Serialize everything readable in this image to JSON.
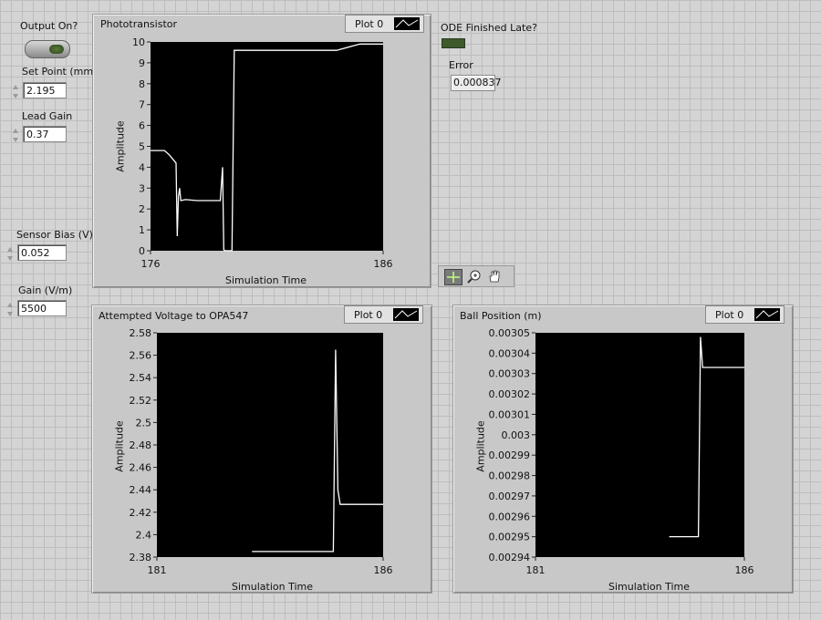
{
  "controls": {
    "output_on_label": "Output On?",
    "set_point_label": "Set Point (mm)",
    "set_point_value": "2.195",
    "lead_gain_label": "Lead Gain",
    "lead_gain_value": "0.37",
    "sensor_bias_label": "Sensor Bias (V)",
    "sensor_bias_value": "0.052",
    "gain_label": "Gain (V/m)",
    "gain_value": "5500",
    "ode_label": "ODE Finished Late?",
    "error_label": "Error",
    "error_value": "0.000837"
  },
  "graphs": {
    "phototransistor": {
      "title": "Phototransistor",
      "legend": "Plot 0",
      "ylabel": "Amplitude",
      "xlabel": "Simulation Time",
      "yticks": [
        "10",
        "9",
        "8",
        "7",
        "6",
        "5",
        "4",
        "3",
        "2",
        "1",
        "0"
      ],
      "xticks": [
        "176",
        "186"
      ]
    },
    "voltage": {
      "title": "Attempted Voltage to OPA547",
      "legend": "Plot 0",
      "ylabel": "Amplitude",
      "xlabel": "Simulation Time",
      "yticks": [
        "2.58",
        "2.56",
        "2.54",
        "2.52",
        "2.5",
        "2.48",
        "2.46",
        "2.44",
        "2.42",
        "2.4",
        "2.38"
      ],
      "xticks": [
        "181",
        "186"
      ]
    },
    "ball": {
      "title": "Ball Position (m)",
      "legend": "Plot 0",
      "ylabel": "Amplitude",
      "xlabel": "Simulation Time",
      "yticks": [
        "0.00305",
        "0.00304",
        "0.00303",
        "0.00302",
        "0.00301",
        "0.003",
        "0.00299",
        "0.00298",
        "0.00297",
        "0.00296",
        "0.00295",
        "0.00294"
      ],
      "xticks": [
        "181",
        "186"
      ]
    }
  },
  "chart_data": [
    {
      "type": "line",
      "title": "Phototransistor",
      "xlabel": "Simulation Time",
      "ylabel": "Amplitude",
      "xlim": [
        176,
        186
      ],
      "ylim": [
        0,
        10
      ],
      "series": [
        {
          "name": "Plot 0",
          "x": [
            176,
            176.6,
            176.8,
            177.1,
            177.15,
            177.2,
            177.25,
            177.3,
            177.5,
            178,
            179,
            179.1,
            179.15,
            179.2,
            179.5,
            179.6,
            179.7,
            180,
            183,
            184,
            185,
            186
          ],
          "y": [
            4.8,
            4.8,
            4.6,
            4.2,
            0.7,
            2.6,
            3.0,
            2.4,
            2.45,
            2.4,
            2.4,
            4.0,
            0.05,
            0,
            0,
            9.6,
            9.6,
            9.6,
            9.6,
            9.6,
            9.9,
            9.9
          ]
        }
      ]
    },
    {
      "type": "line",
      "title": "Attempted Voltage to OPA547",
      "xlabel": "Simulation Time",
      "ylabel": "Amplitude",
      "xlim": [
        181,
        186
      ],
      "ylim": [
        2.38,
        2.58
      ],
      "series": [
        {
          "name": "Plot 0",
          "x": [
            183.1,
            183.5,
            184,
            184.4,
            184.9,
            184.95,
            185.0,
            185.05,
            185.1,
            185.5,
            186
          ],
          "y": [
            2.385,
            2.385,
            2.385,
            2.385,
            2.385,
            2.565,
            2.44,
            2.427,
            2.427,
            2.427,
            2.427
          ]
        }
      ]
    },
    {
      "type": "line",
      "title": "Ball Position (m)",
      "xlabel": "Simulation Time",
      "ylabel": "Amplitude",
      "xlim": [
        181,
        186
      ],
      "ylim": [
        0.00294,
        0.00305
      ],
      "series": [
        {
          "name": "Plot 0",
          "x": [
            184.2,
            184.5,
            184.9,
            184.95,
            185.0,
            185.05,
            185.5,
            186
          ],
          "y": [
            0.00295,
            0.00295,
            0.00295,
            0.003048,
            0.003033,
            0.003033,
            0.003033,
            0.003033
          ]
        }
      ]
    }
  ]
}
